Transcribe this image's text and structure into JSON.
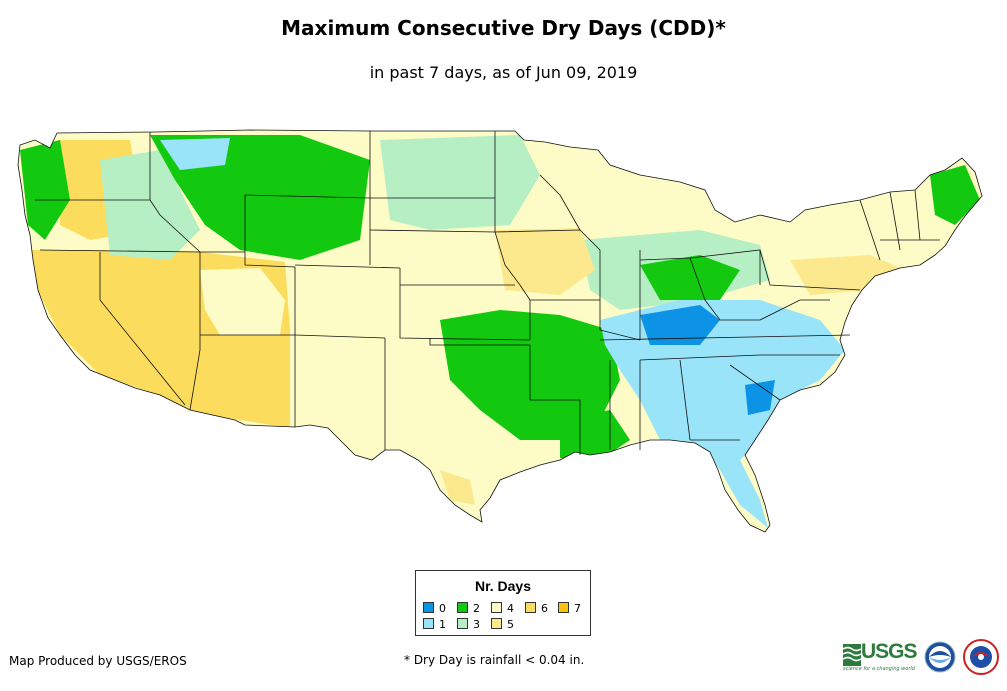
{
  "title": "Maximum Consecutive Dry Days (CDD)*",
  "subtitle": "in past 7 days, as of Jun 09, 2019",
  "legend": {
    "title": "Nr. Days",
    "items": [
      {
        "label": "0",
        "color": "#0d93e6"
      },
      {
        "label": "1",
        "color": "#99e4f8"
      },
      {
        "label": "2",
        "color": "#12c90f"
      },
      {
        "label": "3",
        "color": "#b6efc4"
      },
      {
        "label": "4",
        "color": "#fdfbc6"
      },
      {
        "label": "5",
        "color": "#fce98e"
      },
      {
        "label": "6",
        "color": "#fcdc5c"
      },
      {
        "label": "7",
        "color": "#fbc20b"
      }
    ]
  },
  "footer": {
    "credit": "Map Produced by USGS/EROS",
    "note": "* Dry Day is rainfall < 0.04 in."
  },
  "logos": {
    "usgs_text": "USGS",
    "usgs_tagline": "science for a changing world"
  }
}
